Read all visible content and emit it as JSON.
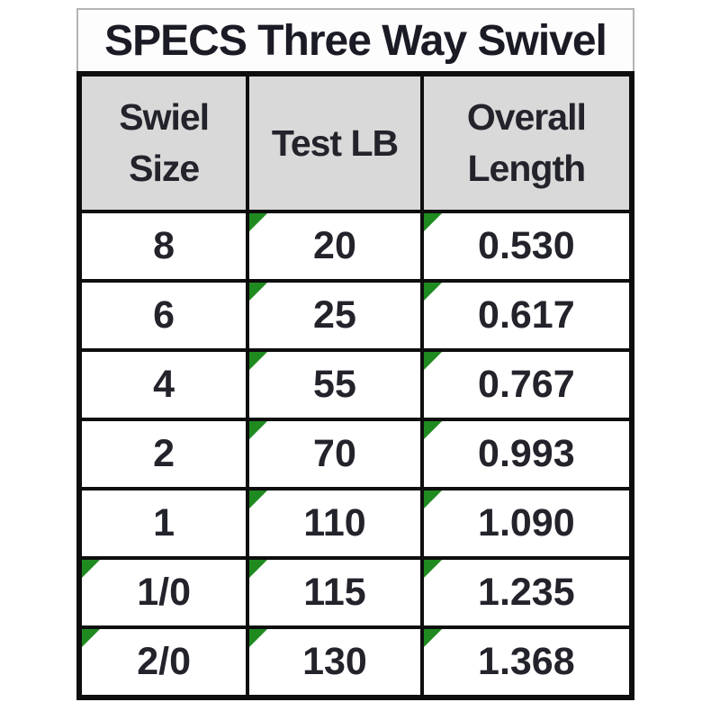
{
  "table": {
    "title": "SPECS Three Way Swivel",
    "columns": [
      {
        "id": "swivel_size",
        "lines": [
          "Swiel",
          "Size"
        ]
      },
      {
        "id": "test_lb",
        "lines": [
          "Test LB"
        ]
      },
      {
        "id": "overall_length",
        "lines": [
          "Overall",
          "Length"
        ]
      }
    ],
    "rows": [
      {
        "size": "8",
        "test_lb": "20",
        "overall_length": "0.530",
        "indicators": {
          "size": false,
          "test_lb": true,
          "overall_length": true
        }
      },
      {
        "size": "6",
        "test_lb": "25",
        "overall_length": "0.617",
        "indicators": {
          "size": false,
          "test_lb": true,
          "overall_length": true
        }
      },
      {
        "size": "4",
        "test_lb": "55",
        "overall_length": "0.767",
        "indicators": {
          "size": false,
          "test_lb": true,
          "overall_length": true
        }
      },
      {
        "size": "2",
        "test_lb": "70",
        "overall_length": "0.993",
        "indicators": {
          "size": false,
          "test_lb": true,
          "overall_length": true
        }
      },
      {
        "size": "1",
        "test_lb": "110",
        "overall_length": "1.090",
        "indicators": {
          "size": false,
          "test_lb": true,
          "overall_length": true
        }
      },
      {
        "size": "1/0",
        "test_lb": "115",
        "overall_length": "1.235",
        "indicators": {
          "size": true,
          "test_lb": true,
          "overall_length": true
        }
      },
      {
        "size": "2/0",
        "test_lb": "130",
        "overall_length": "1.368",
        "indicators": {
          "size": true,
          "test_lb": true,
          "overall_length": true
        }
      }
    ],
    "colors": {
      "header_background": "#d9d9d9",
      "grid_border": "#0e0e0e",
      "error_indicator_green": "#1f8a1f",
      "title_text": "#1b1b25",
      "cell_text": "#23232b"
    }
  }
}
